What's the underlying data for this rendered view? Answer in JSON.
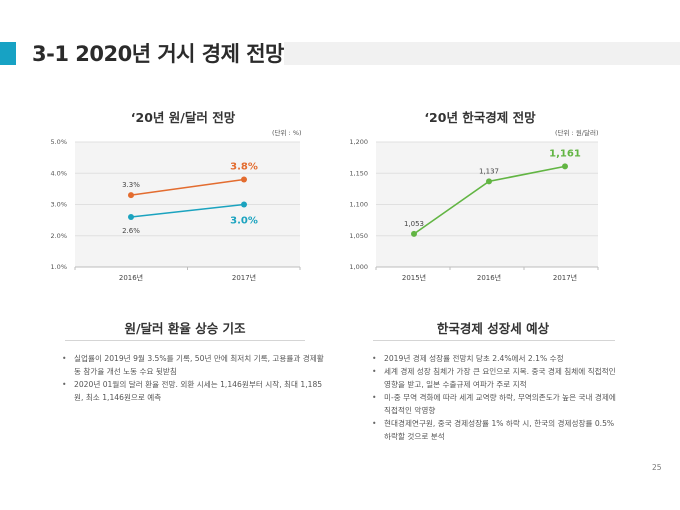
{
  "header": {
    "title": "3-1 2020년 거시 경제 전망",
    "accent_color": "#17a2c4"
  },
  "chart_data": [
    {
      "type": "line",
      "title": "‘20년 원/달러 전망",
      "unit_label": "(단위 : %)",
      "categories": [
        "2016년",
        "2017년"
      ],
      "ylim": [
        1.0,
        5.0
      ],
      "yticks": [
        "5.0%",
        "4.0%",
        "3.0%",
        "2.0%",
        "1.0%"
      ],
      "ytick_values": [
        5.0,
        4.0,
        3.0,
        2.0,
        1.0
      ],
      "grid": true,
      "series": [
        {
          "name": "series-orange",
          "color": "#e36c2f",
          "values": [
            3.3,
            3.8
          ],
          "labels": [
            "3.3%",
            "3.8%"
          ],
          "label_position": "above"
        },
        {
          "name": "series-teal",
          "color": "#1ba3bf",
          "values": [
            2.6,
            3.0
          ],
          "labels": [
            "2.6%",
            "3.0%"
          ],
          "label_position": "below"
        }
      ]
    },
    {
      "type": "line",
      "title": "‘20년 한국경제 전망",
      "unit_label": "(단위 : 원/달러)",
      "categories": [
        "2015년",
        "2016년",
        "2017년"
      ],
      "ylim": [
        1000,
        1200
      ],
      "yticks": [
        "1,200",
        "1,150",
        "1,100",
        "1,050",
        "1,000"
      ],
      "ytick_values": [
        1200,
        1150,
        1100,
        1050,
        1000
      ],
      "grid": true,
      "series": [
        {
          "name": "series-green",
          "color": "#62b543",
          "values": [
            1053,
            1137,
            1161
          ],
          "labels": [
            "1,053",
            "1,137",
            "1,161"
          ],
          "label_position": "above"
        }
      ]
    }
  ],
  "sections": [
    {
      "title": "원/달러 환율 상승 기조",
      "bullets": [
        "실업률이 2019년 9월 3.5%를 기록, 50년 만에 최저치 기록, 고용률과 경제활동 참가율 개선 노동 수요 뒷받침",
        "2020년 01월의 달러 환율 전망. 외환 시세는 1,146원부터 시작, 최대 1,185원, 최소 1,146원으로 예측"
      ]
    },
    {
      "title": "한국경제 성장세 예상",
      "bullets": [
        "2019년 경제 성장률 전망치 당초 2.4%에서 2.1% 수정",
        "세계 경제 성장 침체가 가장 큰 요인으로 지목. 중국 경제 침체에 직접적인 영향을 받고, 일본 수출규제 여파가 주로 지적",
        "미-중 무역 격화에 따라 세계 교역량 하락, 무역의존도가 높은 국내 경제에 직접적인 악영향",
        "현대경제연구원, 중국 경제성장률 1% 하락 시, 한국의 경제성장률 0.5% 하락할 것으로 분석"
      ]
    }
  ],
  "footer": {
    "page_number": "25"
  }
}
